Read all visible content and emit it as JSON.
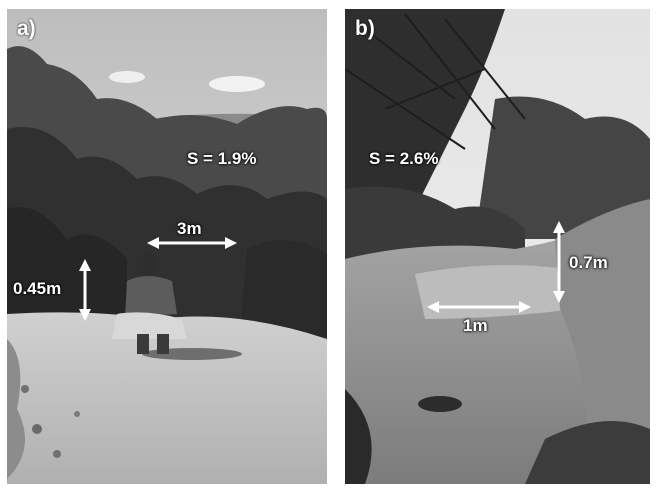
{
  "panels": [
    {
      "tag": "a)",
      "slope": "S = 1.9%",
      "width_label": "3m",
      "depth_label": "0.45m"
    },
    {
      "tag": "b)",
      "slope": "S = 2.6%",
      "width_label": "1m",
      "depth_label": "0.7m"
    }
  ],
  "colors": {
    "label": "#ffffff",
    "sky": "#dcdcdc",
    "vegetation": "#3a3a3a",
    "ground": "#b8b8b8"
  }
}
